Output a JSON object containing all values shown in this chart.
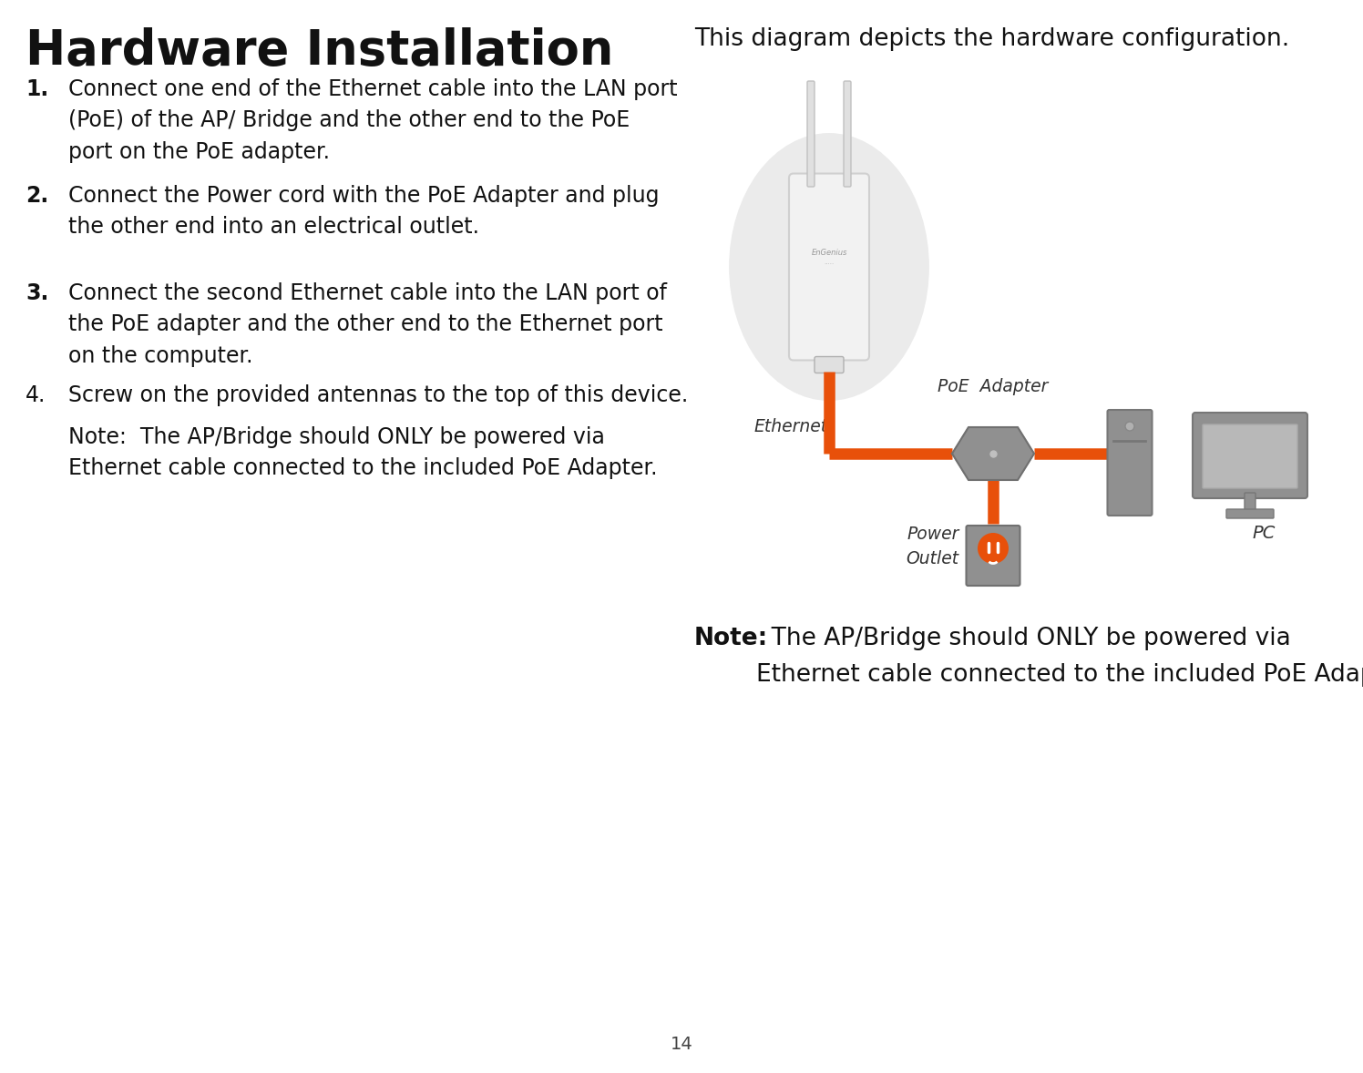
{
  "bg_color": "#ffffff",
  "title": "Hardware Installation",
  "diagram_caption": "This diagram depicts the hardware configuration.",
  "orange_color": "#E8500A",
  "gray_color": "#888888",
  "page_number": "14",
  "label_ethernet": "Ethernet",
  "label_poe": "PoE  Adapter",
  "label_power": "Power\nOutlet",
  "label_pc": "PC",
  "step1_num": "1.",
  "step1_text": "Connect one end of the Ethernet cable into the LAN port\n(PoE) of the AP/ Bridge and the other end to the PoE\nport on the PoE adapter.",
  "step2_num": "2.",
  "step2_text": "Connect the Power cord with the PoE Adapter and plug\nthe other end into an electrical outlet.",
  "step3_num": "3.",
  "step3_text": "Connect the second Ethernet cable into the LAN port of\nthe PoE adapter and the other end to the Ethernet port\non the computer.",
  "step4_num": "4.",
  "step4_text": "Screw on the provided antennas to the top of this device.",
  "note_left": "Note:  The AP/Bridge should ONLY be powered via\nEthernet cable connected to the included PoE Adapter.",
  "note_right_bold": "Note:",
  "note_right_rest": "  The AP/Bridge should ONLY be powered via\nEthernet cable connected to the included PoE Adapter."
}
